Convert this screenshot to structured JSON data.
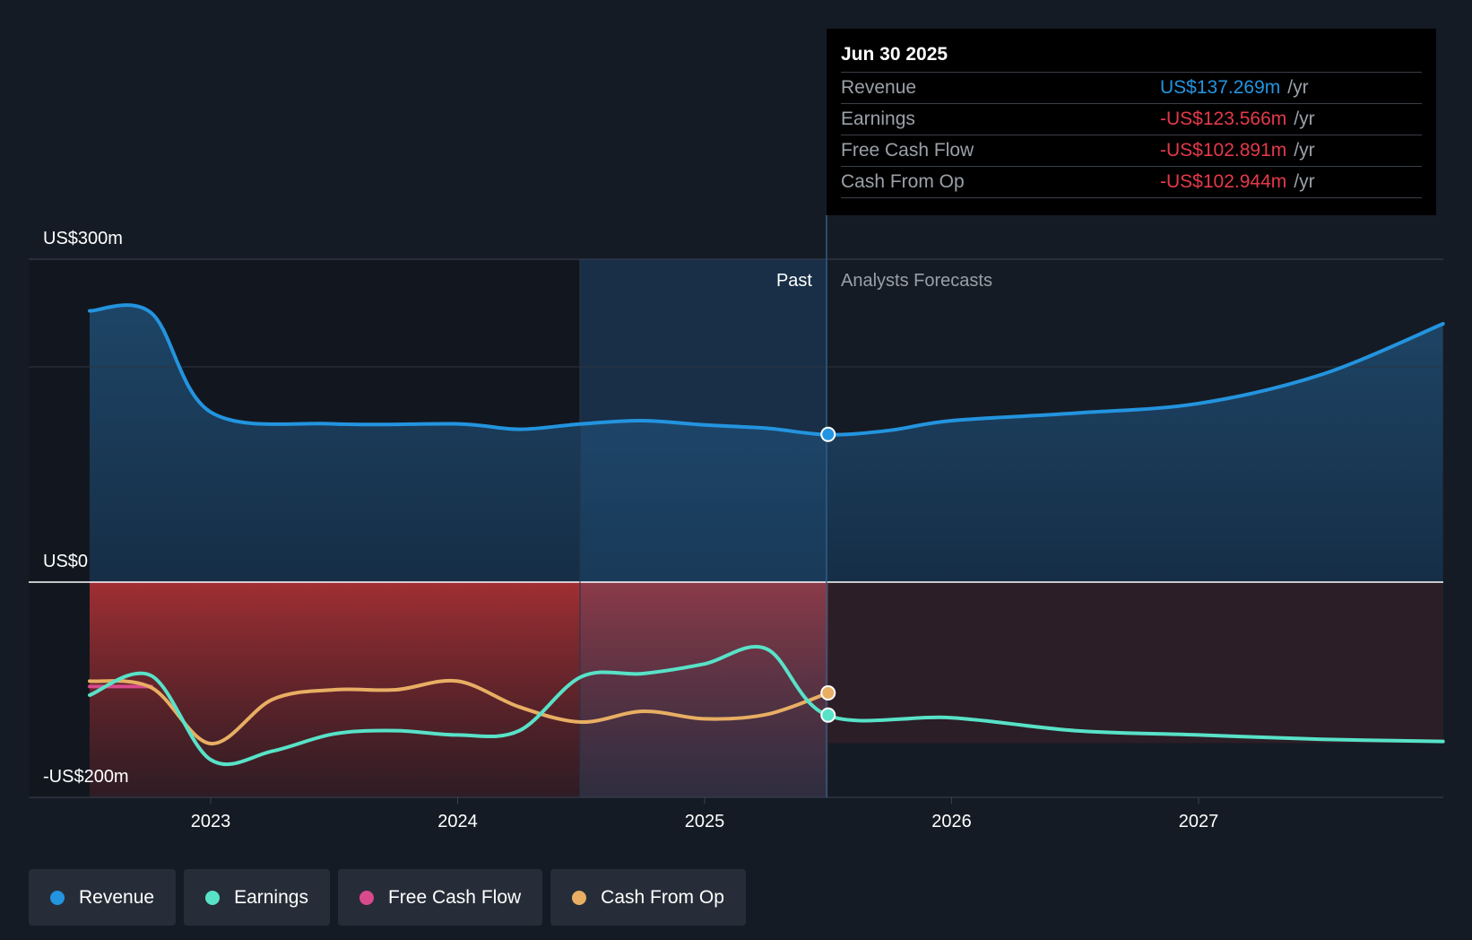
{
  "chart_data": {
    "type": "line",
    "y_axis": {
      "label_top": "US$300m",
      "label_zero": "US$0",
      "label_bottom": "-US$200m",
      "ylim": [
        -200,
        300
      ]
    },
    "x_ticks": [
      "2023",
      "2024",
      "2025",
      "2026",
      "2027"
    ],
    "regions": {
      "past_label": "Past",
      "forecast_label": "Analysts Forecasts"
    },
    "series": [
      {
        "name": "Revenue",
        "color": "#2394df",
        "points": [
          [
            2022.51,
            252
          ],
          [
            2022.76,
            250
          ],
          [
            2023.0,
            158
          ],
          [
            2023.5,
            147
          ],
          [
            2024.0,
            147
          ],
          [
            2024.25,
            142
          ],
          [
            2024.5,
            147
          ],
          [
            2024.75,
            150
          ],
          [
            2025.0,
            146
          ],
          [
            2025.25,
            143
          ],
          [
            2025.5,
            137
          ],
          [
            2025.75,
            141
          ],
          [
            2026.0,
            150
          ],
          [
            2026.5,
            157
          ],
          [
            2027.0,
            166
          ],
          [
            2027.5,
            193
          ],
          [
            2027.99,
            240
          ]
        ]
      },
      {
        "name": "Earnings",
        "color": "#58e2c8",
        "points": [
          [
            2022.51,
            -105
          ],
          [
            2022.76,
            -87
          ],
          [
            2023.0,
            -165
          ],
          [
            2023.25,
            -157
          ],
          [
            2023.5,
            -141
          ],
          [
            2023.75,
            -138
          ],
          [
            2024.0,
            -142
          ],
          [
            2024.25,
            -138
          ],
          [
            2024.5,
            -88
          ],
          [
            2024.75,
            -85
          ],
          [
            2025.0,
            -76
          ],
          [
            2025.25,
            -62
          ],
          [
            2025.5,
            -124
          ],
          [
            2026.0,
            -126
          ],
          [
            2026.5,
            -138
          ],
          [
            2027.0,
            -142
          ],
          [
            2027.5,
            -146
          ],
          [
            2027.99,
            -148
          ]
        ]
      },
      {
        "name": "Free Cash Flow",
        "color": "#d94a8c",
        "points": [
          [
            2022.51,
            -97
          ],
          [
            2022.76,
            -97
          ]
        ]
      },
      {
        "name": "Cash From Op",
        "color": "#e8ae63",
        "points": [
          [
            2022.51,
            -92
          ],
          [
            2022.76,
            -98
          ],
          [
            2023.0,
            -150
          ],
          [
            2023.25,
            -109
          ],
          [
            2023.5,
            -100
          ],
          [
            2023.75,
            -100
          ],
          [
            2024.0,
            -92
          ],
          [
            2024.25,
            -116
          ],
          [
            2024.5,
            -130
          ],
          [
            2024.75,
            -120
          ],
          [
            2025.0,
            -127
          ],
          [
            2025.25,
            -123
          ],
          [
            2025.5,
            -103
          ]
        ]
      }
    ],
    "tooltip": {
      "date": "Jun 30 2025",
      "rows": [
        {
          "name": "Revenue",
          "value": "US$137.269m",
          "unit": "/yr",
          "color": "#2394df"
        },
        {
          "name": "Earnings",
          "value": "-US$123.566m",
          "unit": "/yr",
          "color": "#e5394a"
        },
        {
          "name": "Free Cash Flow",
          "value": "-US$102.891m",
          "unit": "/yr",
          "color": "#e5394a"
        },
        {
          "name": "Cash From Op",
          "value": "-US$102.944m",
          "unit": "/yr",
          "color": "#e5394a"
        }
      ]
    },
    "legend": [
      {
        "name": "Revenue",
        "color": "#2394df"
      },
      {
        "name": "Earnings",
        "color": "#58e2c8"
      },
      {
        "name": "Free Cash Flow",
        "color": "#d94a8c"
      },
      {
        "name": "Cash From Op",
        "color": "#e8ae63"
      }
    ]
  }
}
